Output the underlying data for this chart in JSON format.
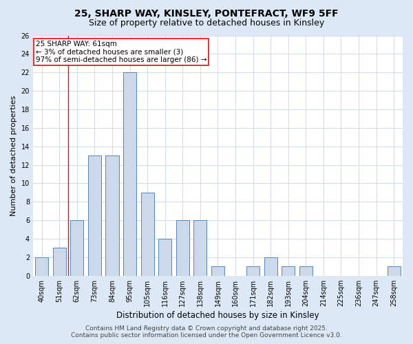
{
  "title_line1": "25, SHARP WAY, KINSLEY, PONTEFRACT, WF9 5FF",
  "title_line2": "Size of property relative to detached houses in Kinsley",
  "xlabel": "Distribution of detached houses by size in Kinsley",
  "ylabel": "Number of detached properties",
  "categories": [
    "40sqm",
    "51sqm",
    "62sqm",
    "73sqm",
    "84sqm",
    "95sqm",
    "105sqm",
    "116sqm",
    "127sqm",
    "138sqm",
    "149sqm",
    "160sqm",
    "171sqm",
    "182sqm",
    "193sqm",
    "204sqm",
    "214sqm",
    "225sqm",
    "236sqm",
    "247sqm",
    "258sqm"
  ],
  "values": [
    2,
    3,
    6,
    13,
    13,
    22,
    9,
    4,
    6,
    6,
    1,
    0,
    1,
    2,
    1,
    1,
    0,
    0,
    0,
    0,
    1
  ],
  "bar_color": "#ccd9ea",
  "bar_edge_color": "#4f86c0",
  "grid_color": "#c8d4e0",
  "plot_bg_color": "#ffffff",
  "fig_bg_color": "#dce8f5",
  "annotation_text_line1": "25 SHARP WAY: 61sqm",
  "annotation_text_line2": "← 3% of detached houses are smaller (3)",
  "annotation_text_line3": "97% of semi-detached houses are larger (86) →",
  "annotation_box_facecolor": "white",
  "annotation_box_edgecolor": "red",
  "ref_line_color": "red",
  "ref_line_x": 1.5,
  "ylim": [
    0,
    26
  ],
  "yticks": [
    0,
    2,
    4,
    6,
    8,
    10,
    12,
    14,
    16,
    18,
    20,
    22,
    24,
    26
  ],
  "footer_line1": "Contains HM Land Registry data © Crown copyright and database right 2025.",
  "footer_line2": "Contains public sector information licensed under the Open Government Licence v3.0.",
  "title_fontsize": 10,
  "subtitle_fontsize": 9,
  "ylabel_fontsize": 8,
  "xlabel_fontsize": 8.5,
  "tick_fontsize": 7,
  "annotation_fontsize": 7.5,
  "footer_fontsize": 6.5
}
